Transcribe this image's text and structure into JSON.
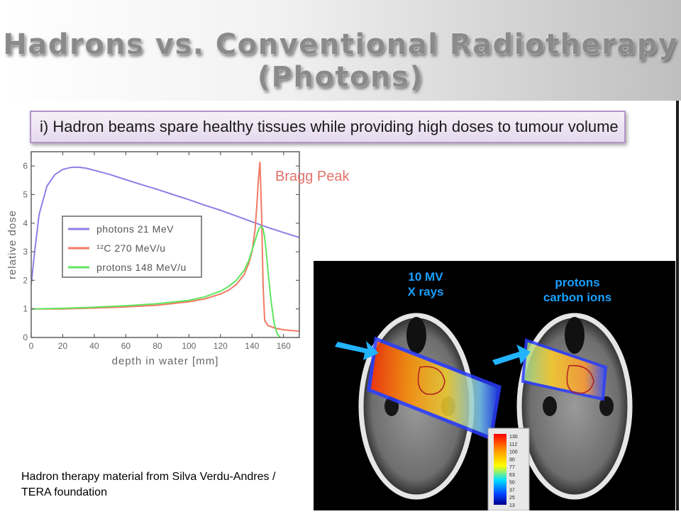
{
  "slide": {
    "title_line1": "Hadrons vs. Conventional Radiotherapy",
    "title_line2": "(Photons)",
    "subtitle": "i) Hadron beams spare healthy tissues while providing high doses to tumour volume",
    "caption": "Hadron therapy material from Silva Verdu-Andres / TERA foundation"
  },
  "chart_data": [
    {
      "type": "line",
      "xlabel": "depth in water [mm]",
      "ylabel": "relative dose",
      "xlim": [
        0,
        170
      ],
      "ylim": [
        0,
        6.5
      ],
      "xticks": [
        0,
        20,
        40,
        60,
        80,
        100,
        120,
        140,
        160
      ],
      "yticks": [
        0,
        1,
        2,
        3,
        4,
        5,
        6
      ],
      "annotation": "Bragg Peak",
      "annotation_color": "#e2736a",
      "legend_position": "center",
      "series": [
        {
          "name": "photons 21 MeV",
          "color": "#8e7fe6",
          "x": [
            0,
            2,
            5,
            10,
            15,
            20,
            25,
            30,
            35,
            40,
            50,
            60,
            70,
            80,
            90,
            100,
            110,
            120,
            130,
            140,
            150,
            160,
            170
          ],
          "y": [
            1.85,
            2.9,
            4.3,
            5.3,
            5.7,
            5.88,
            5.95,
            5.96,
            5.92,
            5.85,
            5.7,
            5.52,
            5.35,
            5.18,
            5.0,
            4.82,
            4.63,
            4.45,
            4.25,
            4.05,
            3.85,
            3.67,
            3.5
          ]
        },
        {
          "name": "¹²C 270 MeV/u",
          "color": "#f07a63",
          "x": [
            0,
            20,
            40,
            60,
            80,
            100,
            110,
            120,
            125,
            130,
            135,
            138,
            140,
            142,
            143,
            144,
            145,
            146,
            147,
            148,
            150,
            155,
            160,
            165,
            170
          ],
          "y": [
            1.0,
            1.0,
            1.03,
            1.07,
            1.13,
            1.25,
            1.35,
            1.52,
            1.65,
            1.85,
            2.2,
            2.6,
            3.0,
            3.8,
            4.6,
            5.5,
            6.15,
            4.5,
            1.8,
            0.6,
            0.42,
            0.32,
            0.27,
            0.24,
            0.22
          ]
        },
        {
          "name": "protons 148 MeV/u",
          "color": "#5fe65f",
          "x": [
            0,
            20,
            40,
            60,
            80,
            100,
            110,
            120,
            125,
            130,
            135,
            138,
            140,
            142,
            144,
            145,
            146,
            147,
            148,
            149,
            150,
            152,
            154,
            156,
            158
          ],
          "y": [
            1.0,
            1.02,
            1.06,
            1.11,
            1.18,
            1.3,
            1.42,
            1.62,
            1.78,
            2.0,
            2.35,
            2.7,
            3.05,
            3.4,
            3.75,
            3.85,
            3.88,
            3.8,
            3.5,
            3.0,
            2.4,
            1.3,
            0.5,
            0.12,
            0.0
          ]
        }
      ]
    },
    {
      "type": "heatmap",
      "labels": [
        "10 MV\nX rays",
        "protons\ncarbon ions"
      ],
      "label_color": "#1aa0ff",
      "colorbar_ticks": [
        "130",
        "112",
        "100",
        "90",
        "77",
        "63",
        "50",
        "37",
        "25",
        "13"
      ]
    }
  ]
}
